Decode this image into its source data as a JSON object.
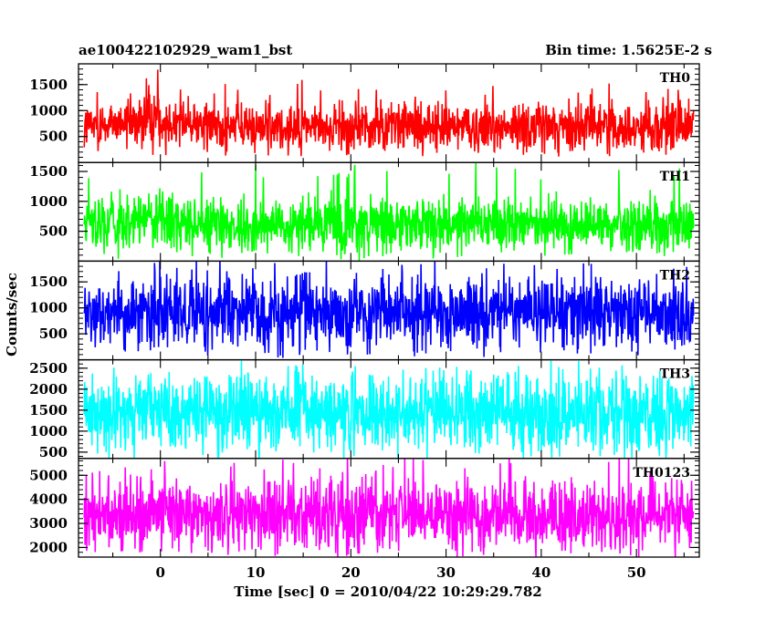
{
  "chart_data": {
    "type": "line",
    "title_left": "ae100422102929_wam1_bst",
    "title_right": "Bin time: 1.5625E-2 s",
    "xlabel": "Time [sec] 0 = 2010/04/22 10:29:29.782",
    "ylabel": "Counts/sec",
    "x_range": [
      -8.6,
      56.6
    ],
    "x_data_range": [
      -8,
      56
    ],
    "x_ticks": [
      0,
      10,
      20,
      30,
      40,
      50
    ],
    "x_tick_labels": [
      "0",
      "10",
      "20",
      "30",
      "40",
      "50"
    ],
    "panels": [
      {
        "name": "TH0",
        "color": "#ff0000",
        "ylim": [
          0,
          1900
        ],
        "y_ticks": [
          500,
          1000,
          1500
        ],
        "y_tick_labels": [
          "500",
          "1000",
          "1500"
        ],
        "mean": 700,
        "noise_low": 120,
        "noise_high": 1500,
        "envelope": [
          [
            -8,
            700
          ],
          [
            -2,
            800
          ],
          [
            0,
            900
          ],
          [
            1,
            780
          ],
          [
            10,
            700
          ],
          [
            20,
            700
          ],
          [
            35,
            700
          ],
          [
            45,
            720
          ],
          [
            56,
            700
          ]
        ]
      },
      {
        "name": "TH1",
        "color": "#00ff00",
        "ylim": [
          0,
          1650
        ],
        "y_ticks": [
          500,
          1000,
          1500
        ],
        "y_tick_labels": [
          "500",
          "1000",
          "1500"
        ],
        "mean": 600,
        "noise_low": 40,
        "noise_high": 1550,
        "envelope": [
          [
            -8,
            600
          ],
          [
            -2,
            660
          ],
          [
            0,
            740
          ],
          [
            1,
            640
          ],
          [
            10,
            600
          ],
          [
            30,
            610
          ],
          [
            56,
            600
          ]
        ]
      },
      {
        "name": "TH2",
        "color": "#0000ff",
        "ylim": [
          0,
          1900
        ],
        "y_ticks": [
          500,
          1000,
          1500
        ],
        "y_tick_labels": [
          "500",
          "1000",
          "1500"
        ],
        "mean": 900,
        "noise_low": 40,
        "noise_high": 1800,
        "envelope": [
          [
            -8,
            900
          ],
          [
            20,
            900
          ],
          [
            40,
            900
          ],
          [
            56,
            900
          ]
        ]
      },
      {
        "name": "TH3",
        "color": "#00ffff",
        "ylim": [
          350,
          2700
        ],
        "y_ticks": [
          500,
          1000,
          1500,
          2000,
          2500
        ],
        "y_tick_labels": [
          "500",
          "1000",
          "1500",
          "2000",
          "2500"
        ],
        "mean": 1450,
        "noise_low": 300,
        "noise_high": 2550,
        "envelope": [
          [
            -8,
            1450
          ],
          [
            0,
            1480
          ],
          [
            30,
            1450
          ],
          [
            56,
            1450
          ]
        ]
      },
      {
        "name": "TH0123",
        "color": "#ff00ff",
        "ylim": [
          1600,
          5700
        ],
        "y_ticks": [
          2000,
          3000,
          4000,
          5000
        ],
        "y_tick_labels": [
          "2000",
          "3000",
          "4000",
          "5000"
        ],
        "mean": 3350,
        "noise_low": 1600,
        "noise_high": 5600,
        "envelope": [
          [
            -8,
            3350
          ],
          [
            0,
            3500
          ],
          [
            1,
            3400
          ],
          [
            30,
            3350
          ],
          [
            56,
            3350
          ]
        ]
      }
    ]
  }
}
